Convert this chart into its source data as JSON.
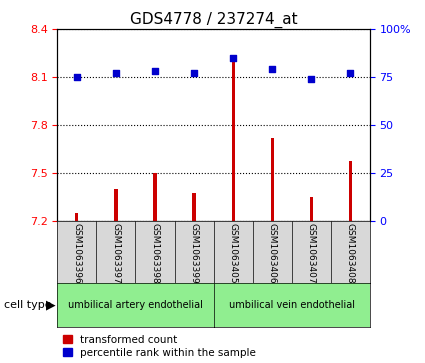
{
  "title": "GDS4778 / 237274_at",
  "samples": [
    "GSM1063396",
    "GSM1063397",
    "GSM1063398",
    "GSM1063399",
    "GSM1063405",
    "GSM1063406",
    "GSM1063407",
    "GSM1063408"
  ],
  "transformed_count": [
    7.25,
    7.4,
    7.5,
    7.38,
    8.23,
    7.72,
    7.35,
    7.58
  ],
  "percentile_rank": [
    75,
    77,
    78,
    77,
    85,
    79,
    74,
    77
  ],
  "ylim_left": [
    7.2,
    8.4
  ],
  "ylim_right": [
    0,
    100
  ],
  "yticks_left": [
    7.2,
    7.5,
    7.8,
    8.1,
    8.4
  ],
  "yticks_right": [
    0,
    25,
    50,
    75,
    100
  ],
  "ytick_labels_left": [
    "7.2",
    "7.5",
    "7.8",
    "8.1",
    "8.4"
  ],
  "ytick_labels_right": [
    "0",
    "25",
    "50",
    "75",
    "100%"
  ],
  "cell_type_groups": [
    {
      "label": "umbilical artery endothelial",
      "start": 0,
      "end": 4,
      "color": "#90EE90"
    },
    {
      "label": "umbilical vein endothelial",
      "start": 4,
      "end": 8,
      "color": "#90EE90"
    }
  ],
  "bar_color": "#CC0000",
  "dot_color": "#0000CC",
  "bar_bottom": 7.2,
  "bg_color": "#D8D8D8",
  "plot_bg": "#FFFFFF",
  "title_fontsize": 11,
  "tick_fontsize": 8,
  "label_fontsize": 8,
  "bar_width": 0.08,
  "dot_size": 18,
  "legend_fontsize": 7.5
}
